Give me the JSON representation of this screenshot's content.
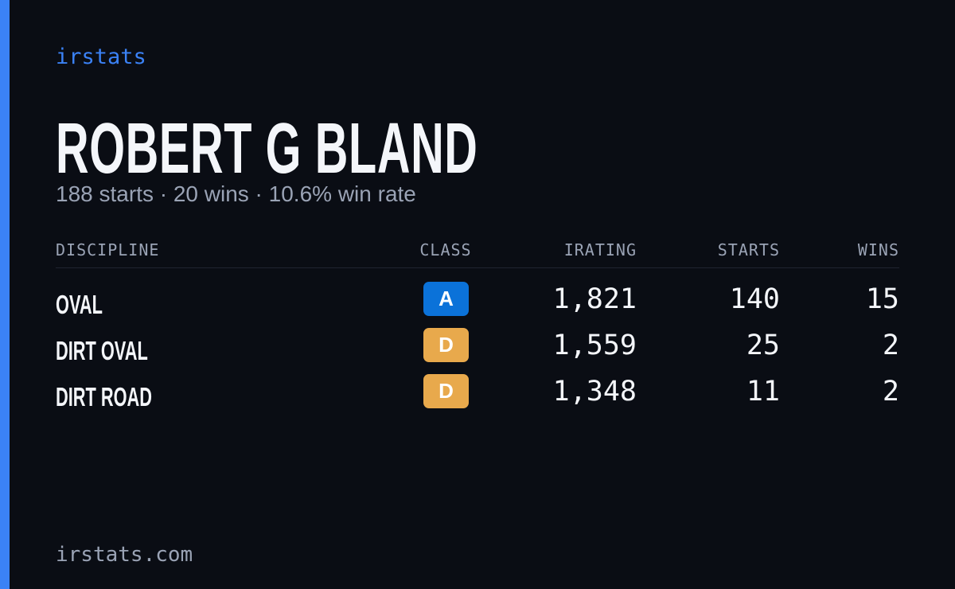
{
  "brand": "irstats",
  "driver": {
    "name": "ROBERT G BLAND",
    "summary": "188 starts · 20 wins · 10.6% win rate"
  },
  "table": {
    "headers": [
      "DISCIPLINE",
      "CLASS",
      "IRATING",
      "STARTS",
      "WINS"
    ],
    "rows": [
      {
        "discipline": "OVAL",
        "class": "A",
        "class_color": "#0b72d9",
        "irating": "1,821",
        "starts": "140",
        "wins": "15"
      },
      {
        "discipline": "DIRT OVAL",
        "class": "D",
        "class_color": "#e8a94c",
        "irating": "1,559",
        "starts": "25",
        "wins": "2"
      },
      {
        "discipline": "DIRT ROAD",
        "class": "D",
        "class_color": "#e8a94c",
        "irating": "1,348",
        "starts": "11",
        "wins": "2"
      }
    ]
  },
  "footer": "irstats.com"
}
